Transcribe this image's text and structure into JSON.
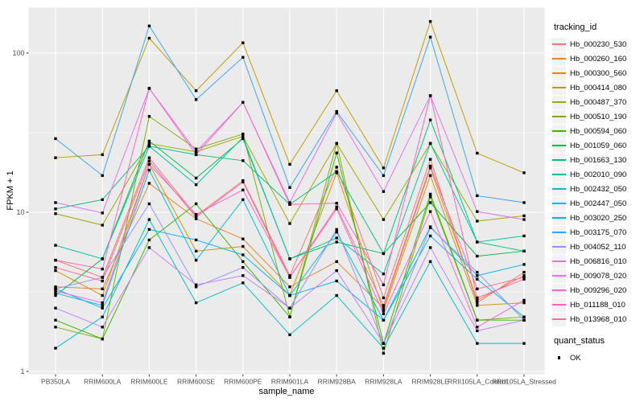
{
  "figure": {
    "background": "#ffffff",
    "panel_background": "#ebebeb",
    "gridline_color": "#ffffff",
    "tick_label_color": "#4d4d4d",
    "point_color": "#000000"
  },
  "axes": {
    "y_title": "FPKM + 1",
    "x_title": "sample_name"
  },
  "legend": {
    "tracking_title": "tracking_id",
    "quant_title": "quant_status",
    "quant_items": [
      {
        "label": "OK",
        "shape": "square",
        "color": "#000000"
      }
    ]
  },
  "chart_data": {
    "type": "line",
    "title": "",
    "xlabel": "sample_name",
    "ylabel": "FPKM + 1",
    "y_scale": "log10",
    "ylim": [
      0.97,
      192
    ],
    "grid": "on",
    "legend_position": "right",
    "legend_title": "tracking_id",
    "point_shape": "filled-square",
    "point_shape_legend": {
      "title": "quant_status",
      "items": [
        "OK"
      ]
    },
    "y_ticks": [
      {
        "label": "1",
        "value": 1
      },
      {
        "label": "10",
        "value": 10
      },
      {
        "label": "100",
        "value": 100
      }
    ],
    "y_minor_gridlines": [
      3.1623,
      31.6228
    ],
    "categories": [
      "PB350LA",
      "RRIM600LA",
      "RRIM600LE",
      "RRIM600SE",
      "RRIM600PE",
      "RRIM901LA",
      "RRIM928BA",
      "RRIM928LA",
      "RRIM928LE",
      "RRII105LA_Control",
      "RRII105LA_Stressed"
    ],
    "series": [
      {
        "name": "Hb_000230_530",
        "color": "#F8766D",
        "values": [
          5.0,
          3.9,
          22,
          9.5,
          15.8,
          4.0,
          19.2,
          2.9,
          21.5,
          2.7,
          4.2
        ]
      },
      {
        "name": "Hb_000260_160",
        "color": "#EA8331",
        "values": [
          3.4,
          3.3,
          15.2,
          9.1,
          6.8,
          3.4,
          4.9,
          2.5,
          19,
          2.8,
          4.0
        ]
      },
      {
        "name": "Hb_000300_560",
        "color": "#D89000",
        "values": [
          4.3,
          3.0,
          20,
          5.7,
          6.1,
          3.0,
          17.7,
          2.4,
          17,
          2.6,
          2.7
        ]
      },
      {
        "name": "Hb_000414_080",
        "color": "#C09B00",
        "values": [
          22,
          23,
          124,
          58,
          116,
          20,
          58,
          19,
          158,
          23.5,
          17.7
        ]
      },
      {
        "name": "Hb_000487_370",
        "color": "#A3A500",
        "values": [
          9.8,
          8.3,
          27,
          24,
          30,
          8.5,
          27,
          9.0,
          27,
          8.8,
          9.5
        ]
      },
      {
        "name": "Hb_000510_190",
        "color": "#7CAE00",
        "values": [
          1.9,
          1.6,
          40,
          25,
          31,
          2.2,
          27.1,
          1.3,
          12.5,
          2.1,
          2.2
        ]
      },
      {
        "name": "Hb_000594_060",
        "color": "#39B600",
        "values": [
          2.1,
          1.6,
          6.7,
          11.3,
          4.9,
          2.2,
          23.6,
          1.5,
          13,
          2.1,
          2.1
        ]
      },
      {
        "name": "Hb_001059_060",
        "color": "#00BB4E",
        "values": [
          3.0,
          5.1,
          28,
          16.4,
          29,
          5.1,
          6.5,
          5.5,
          11.5,
          5.3,
          5.7
        ]
      },
      {
        "name": "Hb_001663_130",
        "color": "#00BF7D",
        "values": [
          10.5,
          12,
          26,
          23,
          21.1,
          11.2,
          18,
          5.5,
          38,
          6.5,
          5.7
        ]
      },
      {
        "name": "Hb_002010_090",
        "color": "#00C1A3",
        "values": [
          6.2,
          5.1,
          26,
          14.9,
          29.5,
          5.1,
          6.9,
          4.1,
          27.1,
          6.5,
          7.1
        ]
      },
      {
        "name": "Hb_002432_050",
        "color": "#00BFC4",
        "values": [
          1.4,
          2.2,
          9.0,
          2.7,
          3.6,
          1.7,
          3.0,
          1.4,
          4.9,
          1.5,
          1.5
        ]
      },
      {
        "name": "Hb_002447_050",
        "color": "#00BAE0",
        "values": [
          3.1,
          2.6,
          18.4,
          5.0,
          12,
          3.0,
          7.5,
          2.1,
          8.1,
          4.0,
          4.7
        ]
      },
      {
        "name": "Hb_003020_250",
        "color": "#00B0F6",
        "values": [
          3.3,
          2.5,
          7.8,
          6.7,
          5.4,
          3.0,
          3.7,
          2.1,
          7.1,
          3.8,
          2.2
        ]
      },
      {
        "name": "Hb_003175_070",
        "color": "#35A2FF",
        "values": [
          29,
          17,
          148,
          51,
          94,
          14.3,
          43,
          17,
          126,
          12.7,
          11.5
        ]
      },
      {
        "name": "Hb_004052_110",
        "color": "#9590FF",
        "values": [
          3.3,
          3.9,
          11.3,
          3.4,
          4.5,
          2.5,
          7.8,
          1.5,
          8.0,
          4.2,
          2.1
        ]
      },
      {
        "name": "Hb_006816_010",
        "color": "#C77CFF",
        "values": [
          2.5,
          1.9,
          6.0,
          3.5,
          4.0,
          2.5,
          4.3,
          1.5,
          6.0,
          1.8,
          2.1
        ]
      },
      {
        "name": "Hb_009078_020",
        "color": "#E76BF3",
        "values": [
          11.5,
          9.9,
          60,
          24,
          49,
          11.5,
          42,
          13.5,
          54,
          10.1,
          9.0
        ]
      },
      {
        "name": "Hb_009296_020",
        "color": "#FA62DB",
        "values": [
          3.2,
          2.7,
          20,
          9.7,
          13.8,
          3.9,
          10.5,
          2.3,
          10.1,
          1.9,
          2.8
        ]
      },
      {
        "name": "Hb_011188_010",
        "color": "#FF62BC",
        "values": [
          5.0,
          4.4,
          60,
          23,
          49,
          11.2,
          11.4,
          3.5,
          54,
          2.9,
          3.8
        ]
      },
      {
        "name": "Hb_013968_010",
        "color": "#FF6A98",
        "values": [
          4.5,
          3.7,
          21,
          9.3,
          15.5,
          3.9,
          10.8,
          2.6,
          19.5,
          3.3,
          3.9
        ]
      }
    ]
  }
}
